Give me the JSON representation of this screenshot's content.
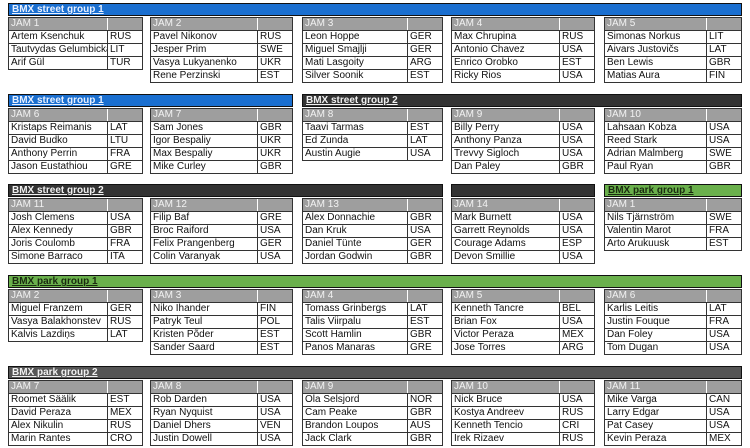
{
  "colors": {
    "street_group_1": "#1a6fd0",
    "street_group_2": "#333333",
    "park_group_1": "#6ab04c",
    "park_group_2": "#555555",
    "jam_header": "#9e9e9e"
  },
  "rows": [
    {
      "bars": [
        {
          "label": "BMX street group 1",
          "color": "#1a6fd0",
          "text_color": "#e8f0ff"
        }
      ],
      "jams": [
        {
          "label": "JAM 1",
          "riders": [
            {
              "name": "Artem Ksenchuk",
              "country": "RUS"
            },
            {
              "name": "Tautvydas Gelumbickas",
              "country": "LIT"
            },
            {
              "name": "Arif Gül",
              "country": "TUR"
            }
          ]
        },
        {
          "label": "JAM 2",
          "riders": [
            {
              "name": "Pavel Nikonov",
              "country": "RUS"
            },
            {
              "name": "Jesper Prim",
              "country": "SWE"
            },
            {
              "name": "Vasya Lukyanenko",
              "country": "UKR"
            },
            {
              "name": "Rene Perzinski",
              "country": "EST"
            }
          ]
        },
        {
          "label": "JAM 3",
          "riders": [
            {
              "name": "Leon Hoppe",
              "country": "GER"
            },
            {
              "name": "Miguel Smajlji",
              "country": "GER"
            },
            {
              "name": "Mati Lasgoity",
              "country": "ARG"
            },
            {
              "name": "Silver Soonik",
              "country": "EST"
            }
          ]
        },
        {
          "label": "JAM 4",
          "riders": [
            {
              "name": "Max Chrupina",
              "country": "RUS"
            },
            {
              "name": "Antonio Chavez",
              "country": "USA"
            },
            {
              "name": "Enrico Orobko",
              "country": "EST"
            },
            {
              "name": "Ricky Rios",
              "country": "USA"
            }
          ]
        },
        {
          "label": "JAM 5",
          "riders": [
            {
              "name": "Simonas Norkus",
              "country": "LIT"
            },
            {
              "name": "Aivars Justovičs",
              "country": "LAT"
            },
            {
              "name": "Ben Lewis",
              "country": "GBR"
            },
            {
              "name": "Matias Aura",
              "country": "FIN"
            }
          ]
        }
      ]
    },
    {
      "bars": [
        {
          "label": "BMX street group 1",
          "color": "#1a6fd0",
          "text_color": "#e8f0ff"
        },
        {
          "label": "BMX street group 2",
          "color": "#333333",
          "text_color": "#f0f0f0"
        }
      ],
      "jams": [
        {
          "label": "JAM 6",
          "riders": [
            {
              "name": "Kristaps Reimanis",
              "country": "LAT"
            },
            {
              "name": "David Budko",
              "country": "LTU"
            },
            {
              "name": "Anthony Perrin",
              "country": "FRA"
            },
            {
              "name": "Jason Eustathiou",
              "country": "GRE"
            }
          ]
        },
        {
          "label": "JAM 7",
          "riders": [
            {
              "name": "Sam Jones",
              "country": "GBR"
            },
            {
              "name": "Igor Bespaliy",
              "country": "UKR"
            },
            {
              "name": "Max Bespaliy",
              "country": "UKR"
            },
            {
              "name": "Mike Curley",
              "country": "GBR"
            }
          ]
        },
        {
          "label": "JAM 8",
          "riders": [
            {
              "name": "Taavi Tarmas",
              "country": "EST"
            },
            {
              "name": "Ed Zunda",
              "country": "LAT"
            },
            {
              "name": "Austin Augie",
              "country": "USA"
            }
          ]
        },
        {
          "label": "JAM 9",
          "riders": [
            {
              "name": "Billy Perry",
              "country": "USA"
            },
            {
              "name": "Anthony Panza",
              "country": "USA"
            },
            {
              "name": "Trevvy Sigloch",
              "country": "USA"
            },
            {
              "name": "Dan Paley",
              "country": "GBR"
            }
          ]
        },
        {
          "label": "JAM 10",
          "riders": [
            {
              "name": "Lahsaan Kobza",
              "country": "USA"
            },
            {
              "name": "Reed Stark",
              "country": "USA"
            },
            {
              "name": "Adrian Malmberg",
              "country": "SWE"
            },
            {
              "name": "Paul Ryan",
              "country": "GBR"
            }
          ]
        }
      ]
    },
    {
      "bars": [
        {
          "label": "BMX street group 2",
          "color": "#333333",
          "text_color": "#f0f0f0"
        },
        {
          "label": "",
          "color": "#333333",
          "text_color": "#f0f0f0"
        },
        {
          "label": "BMX park group 1",
          "color": "#6ab04c",
          "text_color": "#1a2a10"
        }
      ],
      "jams": [
        {
          "label": "JAM 11",
          "riders": [
            {
              "name": "Josh Clemens",
              "country": "USA"
            },
            {
              "name": "Alex Kennedy",
              "country": "GBR"
            },
            {
              "name": "Joris Coulomb",
              "country": "FRA"
            },
            {
              "name": "Simone Barraco",
              "country": "ITA"
            }
          ]
        },
        {
          "label": "JAM 12",
          "riders": [
            {
              "name": "Filip Baf",
              "country": "GRE"
            },
            {
              "name": "Broc Raiford",
              "country": "USA"
            },
            {
              "name": "Felix Prangenberg",
              "country": "GER"
            },
            {
              "name": "Colin Varanyak",
              "country": "USA"
            }
          ]
        },
        {
          "label": "JAM 13",
          "riders": [
            {
              "name": "Alex Donnachie",
              "country": "GBR"
            },
            {
              "name": "Dan Kruk",
              "country": "USA"
            },
            {
              "name": "Daniel Tünte",
              "country": "GER"
            },
            {
              "name": "Jordan Godwin",
              "country": "GBR"
            }
          ]
        },
        {
          "label": "JAM 14",
          "riders": [
            {
              "name": "Mark Burnett",
              "country": "USA"
            },
            {
              "name": "Garrett Reynolds",
              "country": "USA"
            },
            {
              "name": "Courage Adams",
              "country": "ESP"
            },
            {
              "name": "Devon Smillie",
              "country": "USA"
            }
          ]
        },
        {
          "label": "JAM 1",
          "riders": [
            {
              "name": "Nils Tjärnström",
              "country": "SWE"
            },
            {
              "name": "Valentin Marot",
              "country": "FRA"
            },
            {
              "name": "Arto Arukuusk",
              "country": "EST"
            }
          ]
        }
      ]
    },
    {
      "bars": [
        {
          "label": "BMX park group 1",
          "color": "#6ab04c",
          "text_color": "#1a2a10"
        }
      ],
      "jams": [
        {
          "label": "JAM 2",
          "riders": [
            {
              "name": "Miguel Franzem",
              "country": "GER"
            },
            {
              "name": "Vasya Balakhonstev",
              "country": "RUS"
            },
            {
              "name": "Kalvis Lazdiņs",
              "country": "LAT"
            }
          ]
        },
        {
          "label": "JAM 3",
          "riders": [
            {
              "name": "Niko Ihander",
              "country": "FIN"
            },
            {
              "name": "Patryk Teul",
              "country": "POL"
            },
            {
              "name": "Kristen Põder",
              "country": "EST"
            },
            {
              "name": "Sander Saard",
              "country": "EST"
            }
          ]
        },
        {
          "label": "JAM 4",
          "riders": [
            {
              "name": "Tomass Grinbergs",
              "country": "LAT"
            },
            {
              "name": "Talis Viirpalu",
              "country": "EST"
            },
            {
              "name": "Scott Hamlin",
              "country": "GBR"
            },
            {
              "name": "Panos Manaras",
              "country": "GRE"
            }
          ]
        },
        {
          "label": "JAM 5",
          "riders": [
            {
              "name": "Kenneth Tancre",
              "country": "BEL"
            },
            {
              "name": "Brian Fox",
              "country": "USA"
            },
            {
              "name": "Victor Peraza",
              "country": "MEX"
            },
            {
              "name": "Jose Torres",
              "country": "ARG"
            }
          ]
        },
        {
          "label": "JAM 6",
          "riders": [
            {
              "name": "Karlis Leitis",
              "country": "LAT"
            },
            {
              "name": "Justin Fouque",
              "country": "FRA"
            },
            {
              "name": "Dan Foley",
              "country": "USA"
            },
            {
              "name": "Tom Dugan",
              "country": "USA"
            }
          ]
        }
      ]
    },
    {
      "bars": [
        {
          "label": "BMX park group 2",
          "color": "#555555",
          "text_color": "#f0f0f0"
        }
      ],
      "jams": [
        {
          "label": "JAM 7",
          "riders": [
            {
              "name": "Roomet Säälik",
              "country": "EST"
            },
            {
              "name": "David Peraza",
              "country": "MEX"
            },
            {
              "name": "Alex Nikulin",
              "country": "RUS"
            },
            {
              "name": "Marin Rantes",
              "country": "CRO"
            }
          ]
        },
        {
          "label": "JAM 8",
          "riders": [
            {
              "name": "Rob Darden",
              "country": "USA"
            },
            {
              "name": "Ryan Nyquist",
              "country": "USA"
            },
            {
              "name": "Daniel Dhers",
              "country": "VEN"
            },
            {
              "name": "Justin Dowell",
              "country": "USA"
            }
          ]
        },
        {
          "label": "JAM 9",
          "riders": [
            {
              "name": "Ola Selsjord",
              "country": "NOR"
            },
            {
              "name": "Cam Peake",
              "country": "GBR"
            },
            {
              "name": "Brandon Loupos",
              "country": "AUS"
            },
            {
              "name": "Jack Clark",
              "country": "GBR"
            }
          ]
        },
        {
          "label": "JAM 10",
          "riders": [
            {
              "name": "Nick Bruce",
              "country": "USA"
            },
            {
              "name": "Kostya Andreev",
              "country": "RUS"
            },
            {
              "name": "Kenneth Tencio",
              "country": "CRI"
            },
            {
              "name": "Irek Rizaev",
              "country": "RUS"
            }
          ]
        },
        {
          "label": "JAM 11",
          "riders": [
            {
              "name": "Mike Varga",
              "country": "CAN"
            },
            {
              "name": "Larry Edgar",
              "country": "USA"
            },
            {
              "name": "Pat Casey",
              "country": "USA"
            },
            {
              "name": "Kevin Peraza",
              "country": "MEX"
            }
          ]
        }
      ]
    }
  ]
}
